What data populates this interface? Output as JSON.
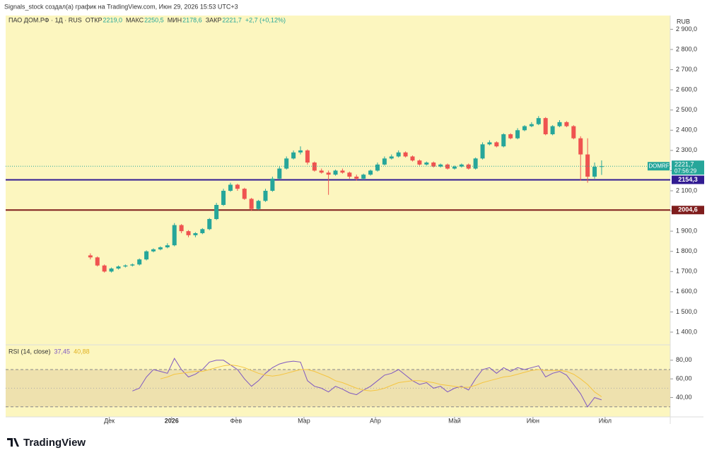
{
  "header": {
    "credit": "Signals_stock создал(а) график на TradingView.com, Июн 29, 2026 15:53 UTC+3",
    "brand": "TradingView"
  },
  "chart_data": {
    "type": "candlestick",
    "symbol": "ПАО ДОМ.РФ · 1Д · RUS",
    "currency": "RUB",
    "ticker": "DOMRF",
    "countdown": "07:56:29",
    "legend": {
      "open_label": "ОТКР",
      "open": {
        "value": 2219,
        "label": "2219,0"
      },
      "high_label": "МАКС",
      "high": {
        "value": 2250.5,
        "label": "2250,5"
      },
      "low_label": "МИН",
      "low": {
        "value": 2178.6,
        "label": "2178,6"
      },
      "close_label": "ЗАКР",
      "close": {
        "value": 2221.7,
        "label": "2221,7"
      },
      "change": "+2,7 (+0,12%)"
    },
    "up_color": "#26a69a",
    "down_color": "#ef5350",
    "open": [
      1780,
      1770,
      1730,
      1700,
      1715,
      1725,
      1730,
      1735,
      1760,
      1800,
      1810,
      1820,
      1830,
      1930,
      1900,
      1880,
      1890,
      1910,
      1960,
      2030,
      2100,
      2130,
      2110,
      2060,
      2010,
      2050,
      2100,
      2160,
      2210,
      2260,
      2290,
      2300,
      2240,
      2200,
      2190,
      2180,
      2200,
      2190,
      2170,
      2160,
      2180,
      2200,
      2230,
      2260,
      2270,
      2290,
      2270,
      2250,
      2230,
      2240,
      2220,
      2230,
      2210,
      2220,
      2230,
      2210,
      2260,
      2330,
      2340,
      2320,
      2380,
      2360,
      2400,
      2420,
      2430,
      2460,
      2380,
      2420,
      2440,
      2420,
      2360,
      2280,
      2170,
      2219
    ],
    "high": [
      1790,
      1775,
      1735,
      1720,
      1730,
      1735,
      1740,
      1765,
      1805,
      1815,
      1825,
      1840,
      1940,
      1935,
      1905,
      1895,
      1915,
      1965,
      2040,
      2110,
      2140,
      2135,
      2115,
      2065,
      2055,
      2110,
      2170,
      2220,
      2270,
      2300,
      2320,
      2305,
      2245,
      2210,
      2200,
      2205,
      2210,
      2195,
      2180,
      2185,
      2205,
      2240,
      2270,
      2280,
      2300,
      2295,
      2275,
      2255,
      2245,
      2245,
      2235,
      2235,
      2225,
      2235,
      2235,
      2265,
      2340,
      2350,
      2345,
      2385,
      2385,
      2410,
      2425,
      2440,
      2470,
      2465,
      2425,
      2450,
      2445,
      2425,
      2370,
      2360,
      2240,
      2250.5
    ],
    "low": [
      1760,
      1725,
      1695,
      1695,
      1710,
      1720,
      1725,
      1730,
      1755,
      1795,
      1805,
      1815,
      1825,
      1890,
      1870,
      1870,
      1885,
      1905,
      1955,
      2025,
      2095,
      2100,
      2055,
      2000,
      2005,
      2045,
      2095,
      2155,
      2205,
      2255,
      2280,
      2230,
      2195,
      2185,
      2080,
      2175,
      2185,
      2160,
      2150,
      2155,
      2175,
      2195,
      2225,
      2255,
      2265,
      2265,
      2245,
      2225,
      2225,
      2215,
      2215,
      2205,
      2205,
      2215,
      2205,
      2205,
      2255,
      2325,
      2315,
      2315,
      2355,
      2355,
      2395,
      2415,
      2425,
      2375,
      2375,
      2415,
      2415,
      2355,
      2150,
      2140,
      2160,
      2178.6
    ],
    "close": [
      1770,
      1730,
      1700,
      1715,
      1725,
      1730,
      1735,
      1760,
      1800,
      1810,
      1820,
      1830,
      1930,
      1900,
      1880,
      1890,
      1910,
      1960,
      2030,
      2100,
      2130,
      2110,
      2060,
      2010,
      2050,
      2100,
      2160,
      2210,
      2260,
      2290,
      2300,
      2240,
      2200,
      2190,
      2180,
      2200,
      2190,
      2170,
      2160,
      2180,
      2200,
      2230,
      2260,
      2270,
      2290,
      2270,
      2250,
      2230,
      2240,
      2220,
      2230,
      2210,
      2220,
      2230,
      2210,
      2260,
      2330,
      2340,
      2320,
      2380,
      2360,
      2400,
      2420,
      2430,
      2460,
      2380,
      2420,
      2440,
      2420,
      2360,
      2280,
      2170,
      2219,
      2221.7
    ],
    "levels": [
      {
        "value": 2154.3,
        "label": "2154,3",
        "color": "#311b92"
      },
      {
        "value": 2004.6,
        "label": "2004,6",
        "color": "#7f1d1d"
      }
    ],
    "xlim": [
      -12.1,
      82.8
    ],
    "xticks": [
      {
        "value": 2.7,
        "label": "Дек"
      },
      {
        "value": 11.6,
        "label": "2026"
      },
      {
        "value": 20.8,
        "label": "Фев"
      },
      {
        "value": 30.5,
        "label": "Мар"
      },
      {
        "value": 40.7,
        "label": "Апр"
      },
      {
        "value": 52,
        "label": "Май"
      },
      {
        "value": 63.2,
        "label": "Июн"
      },
      {
        "value": 73.5,
        "label": "Июл"
      }
    ],
    "ylim": [
      1337,
      2968
    ],
    "yticks": [
      {
        "value": 1400,
        "label": "1 400,0"
      },
      {
        "value": 1500,
        "label": "1 500,0"
      },
      {
        "value": 1600,
        "label": "1 600,0"
      },
      {
        "value": 1700,
        "label": "1 700,0"
      },
      {
        "value": 1800,
        "label": "1 800,0"
      },
      {
        "value": 1900,
        "label": "1 900,0"
      },
      {
        "value": 2000,
        "label": "2 000,0"
      },
      {
        "value": 2100,
        "label": "2 100,0"
      },
      {
        "value": 2200,
        "label": "2 200,0"
      },
      {
        "value": 2300,
        "label": "2 300,0"
      },
      {
        "value": 2400,
        "label": "2 400,0"
      },
      {
        "value": 2500,
        "label": "2 500,0"
      },
      {
        "value": 2600,
        "label": "2 600,0"
      },
      {
        "value": 2700,
        "label": "2 700,0"
      },
      {
        "value": 2800,
        "label": "2 800,0"
      },
      {
        "value": 2900,
        "label": "2 900,0"
      }
    ],
    "rsi": {
      "title": "RSI (14, close)",
      "ylim": [
        23,
        95
      ],
      "yticks": [
        {
          "value": 40,
          "label": "40,00"
        },
        {
          "value": 60,
          "label": "60,00"
        },
        {
          "value": 80,
          "label": "80,00"
        }
      ],
      "band": [
        30,
        70
      ],
      "mid": 50,
      "series": [
        {
          "name": "RSI",
          "color": "#7e57c2",
          "last_label": "37,45",
          "values": [
            null,
            null,
            null,
            null,
            null,
            null,
            47,
            50,
            62,
            70,
            68,
            66,
            82,
            70,
            62,
            65,
            70,
            78,
            80,
            80,
            75,
            70,
            60,
            52,
            58,
            66,
            72,
            76,
            78,
            79,
            78,
            58,
            52,
            50,
            46,
            52,
            49,
            45,
            43,
            48,
            52,
            58,
            64,
            66,
            70,
            64,
            58,
            54,
            56,
            50,
            52,
            46,
            50,
            52,
            48,
            60,
            70,
            72,
            66,
            72,
            68,
            72,
            70,
            72,
            74,
            62,
            66,
            68,
            64,
            54,
            44,
            30,
            40,
            37.45
          ]
        },
        {
          "name": "MA",
          "color": "#f5c542",
          "last_label": "40,88",
          "values": [
            null,
            null,
            null,
            null,
            null,
            null,
            null,
            null,
            null,
            null,
            60,
            62,
            65,
            66,
            67,
            68,
            68,
            70,
            72,
            74,
            75,
            74,
            72,
            69,
            66,
            64,
            63,
            64,
            66,
            68,
            70,
            70,
            68,
            65,
            62,
            58,
            56,
            53,
            50,
            48,
            47,
            48,
            50,
            53,
            56,
            57,
            58,
            58,
            57,
            56,
            54,
            53,
            52,
            51,
            51,
            53,
            56,
            58,
            60,
            62,
            63,
            65,
            67,
            69,
            70,
            69,
            69,
            69,
            68,
            65,
            60,
            54,
            46,
            40.88
          ]
        }
      ]
    }
  }
}
